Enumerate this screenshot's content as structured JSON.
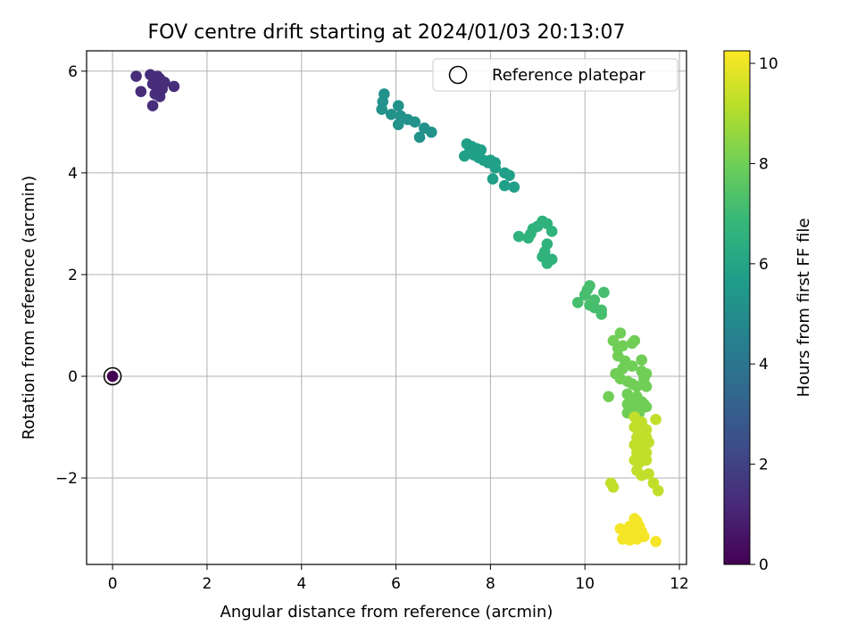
{
  "chart_data": {
    "type": "scatter",
    "title": "FOV centre drift starting at 2024/01/03 20:13:07",
    "xlabel": "Angular distance from reference (arcmin)",
    "ylabel": "Rotation from reference (arcmin)",
    "xlim": [
      -0.55,
      12.15
    ],
    "ylim": [
      -3.7,
      6.4
    ],
    "xticks": [
      0,
      2,
      4,
      6,
      8,
      10,
      12
    ],
    "xtick_labels": [
      "0",
      "2",
      "4",
      "6",
      "8",
      "10",
      "12"
    ],
    "yticks": [
      -2,
      0,
      2,
      4,
      6
    ],
    "ytick_labels": [
      "−2",
      "0",
      "2",
      "4",
      "6"
    ],
    "grid": true,
    "legend": {
      "placement": "top-right",
      "entries": [
        "Reference platepar"
      ]
    },
    "colorbar": {
      "label": "Hours from first FF file",
      "range": [
        0,
        10.25
      ],
      "ticks": [
        0,
        2,
        4,
        6,
        8,
        10
      ],
      "tick_labels": [
        "0",
        "2",
        "4",
        "6",
        "8",
        "10"
      ],
      "colormap": "viridis",
      "stops": [
        "#440154",
        "#482878",
        "#3e4a89",
        "#31688e",
        "#26828e",
        "#1f9e89",
        "#35b779",
        "#6ece58",
        "#b5de2b",
        "#fde725"
      ]
    },
    "reference": {
      "x": 0,
      "y": 0,
      "hours": 0
    },
    "groups": [
      {
        "hours": 1.3,
        "points": [
          [
            0.5,
            5.9
          ],
          [
            0.8,
            5.93
          ],
          [
            0.95,
            5.9
          ],
          [
            1.0,
            5.85
          ],
          [
            1.1,
            5.78
          ],
          [
            1.3,
            5.7
          ],
          [
            0.85,
            5.75
          ],
          [
            0.95,
            5.7
          ],
          [
            1.05,
            5.65
          ],
          [
            0.6,
            5.6
          ],
          [
            0.9,
            5.55
          ],
          [
            1.0,
            5.5
          ],
          [
            0.85,
            5.32
          ]
        ]
      },
      {
        "hours": 5.2,
        "points": [
          [
            5.75,
            5.55
          ],
          [
            5.72,
            5.4
          ],
          [
            5.7,
            5.25
          ],
          [
            5.9,
            5.15
          ],
          [
            6.05,
            5.32
          ],
          [
            6.1,
            5.12
          ],
          [
            6.25,
            5.05
          ],
          [
            6.05,
            4.95
          ],
          [
            6.4,
            5.0
          ],
          [
            6.6,
            4.88
          ],
          [
            6.75,
            4.8
          ],
          [
            6.5,
            4.7
          ]
        ]
      },
      {
        "hours": 5.8,
        "points": [
          [
            7.5,
            4.57
          ],
          [
            7.6,
            4.52
          ],
          [
            7.7,
            4.48
          ],
          [
            7.8,
            4.45
          ],
          [
            7.55,
            4.4
          ],
          [
            7.65,
            4.35
          ],
          [
            7.45,
            4.33
          ],
          [
            7.75,
            4.3
          ],
          [
            7.85,
            4.25
          ],
          [
            8.0,
            4.25
          ],
          [
            8.1,
            4.2
          ],
          [
            7.95,
            4.2
          ],
          [
            8.1,
            4.1
          ],
          [
            8.3,
            4.0
          ],
          [
            8.4,
            3.95
          ],
          [
            8.05,
            3.88
          ],
          [
            8.3,
            3.75
          ],
          [
            8.5,
            3.72
          ]
        ]
      },
      {
        "hours": 6.6,
        "points": [
          [
            8.6,
            2.75
          ],
          [
            8.8,
            2.72
          ],
          [
            8.85,
            2.8
          ],
          [
            8.9,
            2.9
          ],
          [
            9.0,
            2.95
          ],
          [
            9.1,
            3.05
          ],
          [
            9.2,
            3.0
          ],
          [
            9.3,
            2.85
          ],
          [
            9.2,
            2.6
          ],
          [
            9.15,
            2.45
          ],
          [
            9.1,
            2.35
          ],
          [
            9.3,
            2.3
          ],
          [
            9.2,
            2.22
          ]
        ]
      },
      {
        "hours": 7.2,
        "points": [
          [
            9.85,
            1.45
          ],
          [
            10.0,
            1.6
          ],
          [
            10.05,
            1.7
          ],
          [
            10.1,
            1.78
          ],
          [
            10.2,
            1.5
          ],
          [
            10.1,
            1.4
          ],
          [
            10.2,
            1.35
          ],
          [
            10.35,
            1.3
          ],
          [
            10.4,
            1.65
          ],
          [
            10.35,
            1.22
          ]
        ]
      },
      {
        "hours": 8.0,
        "points": [
          [
            10.75,
            0.85
          ],
          [
            10.6,
            0.7
          ],
          [
            10.7,
            0.55
          ],
          [
            10.8,
            0.6
          ],
          [
            11.0,
            0.65
          ],
          [
            11.05,
            0.7
          ],
          [
            10.7,
            0.4
          ],
          [
            10.85,
            0.3
          ],
          [
            11.2,
            0.32
          ],
          [
            10.65,
            0.05
          ],
          [
            10.8,
            0.15
          ],
          [
            11.0,
            0.2
          ],
          [
            11.2,
            0.1
          ],
          [
            11.3,
            0.05
          ],
          [
            10.75,
            -0.05
          ],
          [
            10.9,
            -0.1
          ],
          [
            11.0,
            -0.15
          ],
          [
            11.1,
            -0.2
          ],
          [
            11.25,
            -0.05
          ],
          [
            11.3,
            -0.2
          ],
          [
            10.5,
            -0.4
          ],
          [
            10.9,
            -0.35
          ],
          [
            11.0,
            -0.45
          ],
          [
            11.1,
            -0.4
          ],
          [
            11.2,
            -0.5
          ],
          [
            10.9,
            -0.55
          ],
          [
            11.05,
            -0.6
          ],
          [
            11.25,
            -0.55
          ],
          [
            11.3,
            -0.6
          ],
          [
            10.9,
            -0.72
          ],
          [
            11.0,
            -0.7
          ],
          [
            11.15,
            -0.72
          ]
        ]
      },
      {
        "hours": 9.3,
        "points": [
          [
            11.05,
            -0.8
          ],
          [
            11.2,
            -0.9
          ],
          [
            11.05,
            -1.0
          ],
          [
            11.15,
            -1.1
          ],
          [
            11.3,
            -1.05
          ],
          [
            11.5,
            -0.85
          ],
          [
            11.1,
            -1.2
          ],
          [
            11.2,
            -1.25
          ],
          [
            11.3,
            -1.2
          ],
          [
            11.05,
            -1.35
          ],
          [
            11.2,
            -1.4
          ],
          [
            11.35,
            -1.3
          ],
          [
            11.1,
            -1.5
          ],
          [
            11.2,
            -1.55
          ],
          [
            11.3,
            -1.5
          ],
          [
            11.05,
            -1.65
          ],
          [
            11.15,
            -1.7
          ],
          [
            11.3,
            -1.65
          ],
          [
            11.1,
            -1.85
          ],
          [
            11.2,
            -1.95
          ],
          [
            11.35,
            -1.92
          ],
          [
            11.45,
            -2.1
          ],
          [
            11.55,
            -2.25
          ],
          [
            10.55,
            -2.1
          ],
          [
            10.6,
            -2.18
          ]
        ]
      },
      {
        "hours": 10.1,
        "points": [
          [
            11.05,
            -2.8
          ],
          [
            11.1,
            -2.85
          ],
          [
            11.15,
            -2.95
          ],
          [
            10.95,
            -2.95
          ],
          [
            10.75,
            -3.0
          ],
          [
            10.9,
            -3.05
          ],
          [
            11.0,
            -3.1
          ],
          [
            11.2,
            -3.05
          ],
          [
            11.25,
            -3.15
          ],
          [
            10.8,
            -3.2
          ],
          [
            10.95,
            -3.22
          ],
          [
            11.1,
            -3.2
          ],
          [
            11.5,
            -3.25
          ]
        ]
      }
    ]
  }
}
